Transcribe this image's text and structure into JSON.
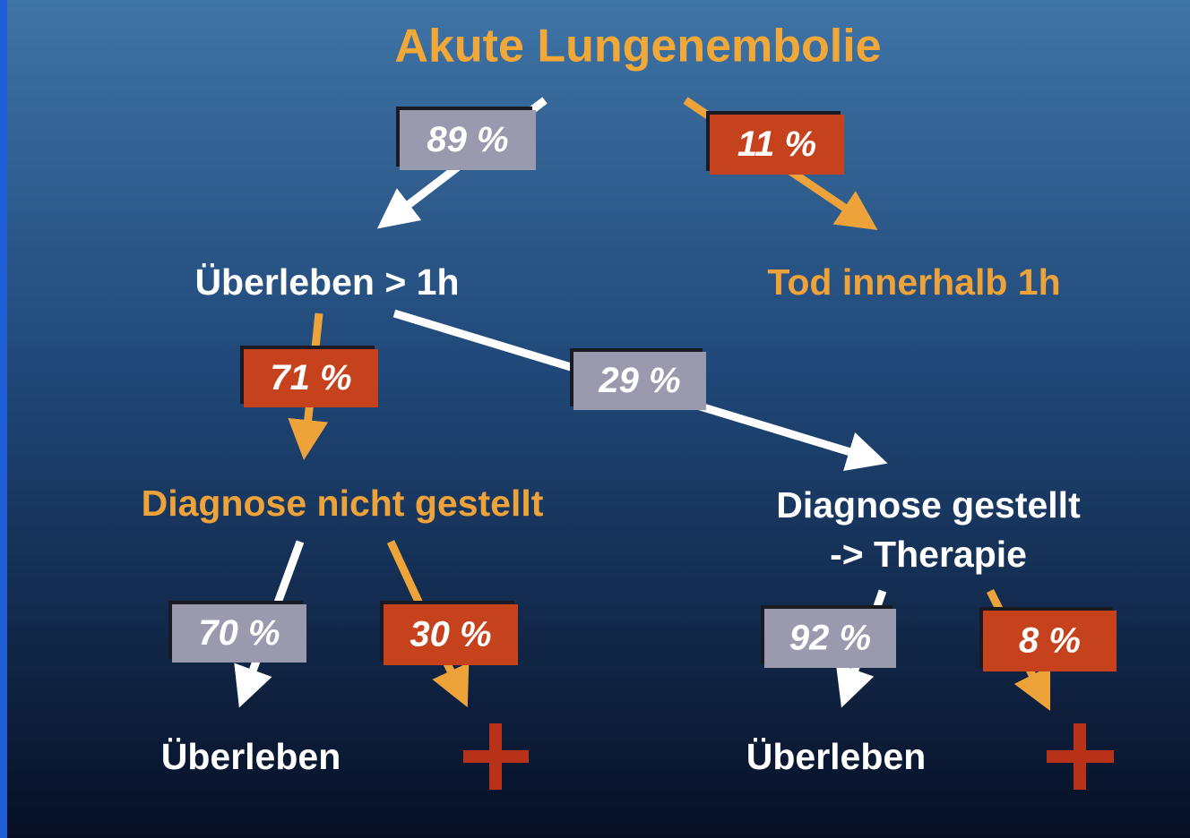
{
  "title": "Akute Lungenembolie",
  "nodes": [
    {
      "label": "Überleben > 1h"
    },
    {
      "label": "Tod innerhalb 1h"
    },
    {
      "label": "Diagnose nicht gestellt"
    },
    {
      "label": "Diagnose gestellt"
    },
    {
      "label": "-> Therapie"
    },
    {
      "label": "Überleben"
    },
    {
      "label": "Überleben"
    }
  ],
  "edges": [
    {
      "label": "89 %"
    },
    {
      "label": "11 %"
    },
    {
      "label": "71 %"
    },
    {
      "label": "29 %"
    },
    {
      "label": "70 %"
    },
    {
      "label": "30 %"
    },
    {
      "label": "92 %"
    },
    {
      "label": "8 %"
    }
  ]
}
